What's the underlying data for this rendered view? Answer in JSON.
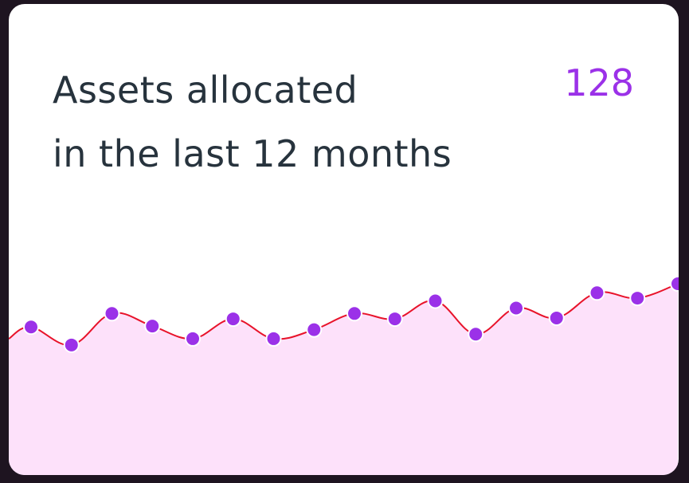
{
  "card": {
    "title_line1": "Assets allocated",
    "title_line2": "in the last 12 months",
    "count": "128"
  },
  "colors": {
    "accent": "#9b31e8",
    "line": "#e8132a",
    "area": "#fde1fa",
    "text": "#27333d"
  },
  "chart_data": {
    "type": "area",
    "values": [
      52,
      32,
      67,
      53,
      39,
      61,
      39,
      49,
      67,
      61,
      81,
      44,
      73,
      62,
      90,
      84,
      100
    ],
    "ylim": [
      0,
      100
    ],
    "grid": false,
    "markers": true
  }
}
